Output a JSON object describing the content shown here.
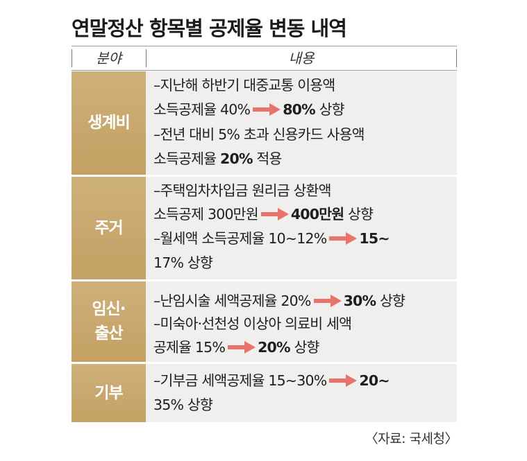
{
  "title": "연말정산 항목별 공제율 변동 내역",
  "header": {
    "col1": "분야",
    "col2": "내용"
  },
  "rows": [
    {
      "category": "생계비",
      "lines": [
        {
          "pre": "–지난해 하반기 대중교통 이용액"
        },
        {
          "pre": "소득공제율 40%",
          "post": "80%",
          "tail": " 상향"
        },
        {
          "pre": "–전년 대비 5% 초과 신용카드 사용액"
        },
        {
          "pre": "소득공제율 ",
          "bold": "20%",
          "tail": " 적용"
        }
      ]
    },
    {
      "category": "주거",
      "lines": [
        {
          "pre": "–주택임차차입금 원리금 상환액"
        },
        {
          "pre": "소득공제 300만원",
          "post": "400만원",
          "tail": " 상향"
        },
        {
          "pre": "–월세액 소득공제율 10∼12%",
          "post": "15∼"
        },
        {
          "pre": "17% 상향"
        }
      ]
    },
    {
      "category": "임신·\n출산",
      "lines": [
        {
          "pre": "–난임시술 세액공제율 20%",
          "post": "30%",
          "tail": " 상향"
        },
        {
          "pre": "–미숙아·선천성 이상아 의료비 세액"
        },
        {
          "pre": "공제율 15%",
          "post": "20%",
          "tail": " 상향"
        }
      ]
    },
    {
      "category": "기부",
      "lines": [
        {
          "pre": "–기부금 세액공제율 15∼30%",
          "post": "20∼"
        },
        {
          "pre": "35% 상향"
        }
      ]
    }
  ],
  "source": "〈자료: 국세청〉",
  "colors": {
    "category_bg": "#c6a76b",
    "content_bg": "#f0efee",
    "arrow": "#e8736a"
  },
  "icons": {
    "arrow": "right-arrow-icon"
  }
}
